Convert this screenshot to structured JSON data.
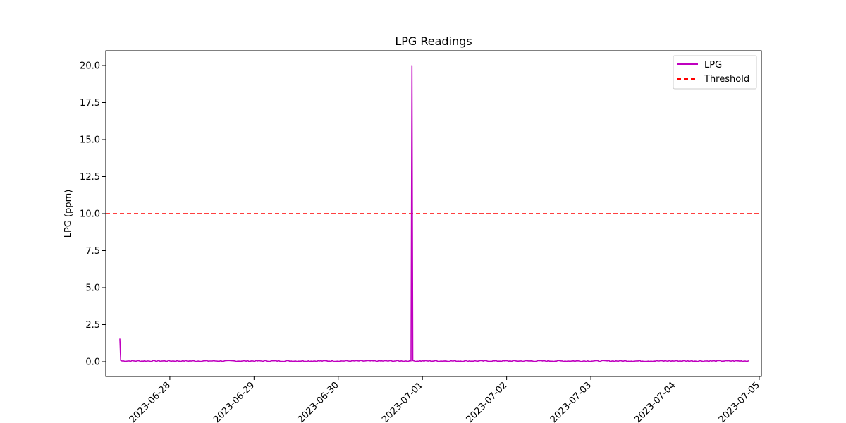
{
  "chart_data": {
    "type": "line",
    "title": "LPG Readings",
    "xlabel": "",
    "ylabel": "LPG (ppm)",
    "ylim": [
      -1.0,
      21.0
    ],
    "yticks": [
      0.0,
      2.5,
      5.0,
      7.5,
      10.0,
      12.5,
      15.0,
      17.5,
      20.0
    ],
    "ytick_labels": [
      "0.0",
      "2.5",
      "5.0",
      "7.5",
      "10.0",
      "12.5",
      "15.0",
      "17.5",
      "20.0"
    ],
    "xlim": [
      "2023-06-27T05:44",
      "2023-07-05T00:37"
    ],
    "xticks": [
      "2023-06-28",
      "2023-06-29",
      "2023-06-30",
      "2023-07-01",
      "2023-07-02",
      "2023-07-03",
      "2023-07-04",
      "2023-07-05"
    ],
    "legend_position": "top-right",
    "series": [
      {
        "name": "LPG",
        "color": "#bf00bf",
        "style": "solid",
        "x": [
          "2023-06-27T09:45",
          "2023-06-27T10:00",
          "2023-06-30T20:45",
          "2023-06-30T21:00",
          "2023-06-30T21:15",
          "2023-07-04T21:00"
        ],
        "values": [
          1.55,
          0.08,
          0.05,
          20.0,
          0.08,
          0.04
        ],
        "noise_baseline": 0.05
      },
      {
        "name": "Threshold",
        "color": "#ff0000",
        "style": "dashed",
        "value": 10.0
      }
    ]
  }
}
